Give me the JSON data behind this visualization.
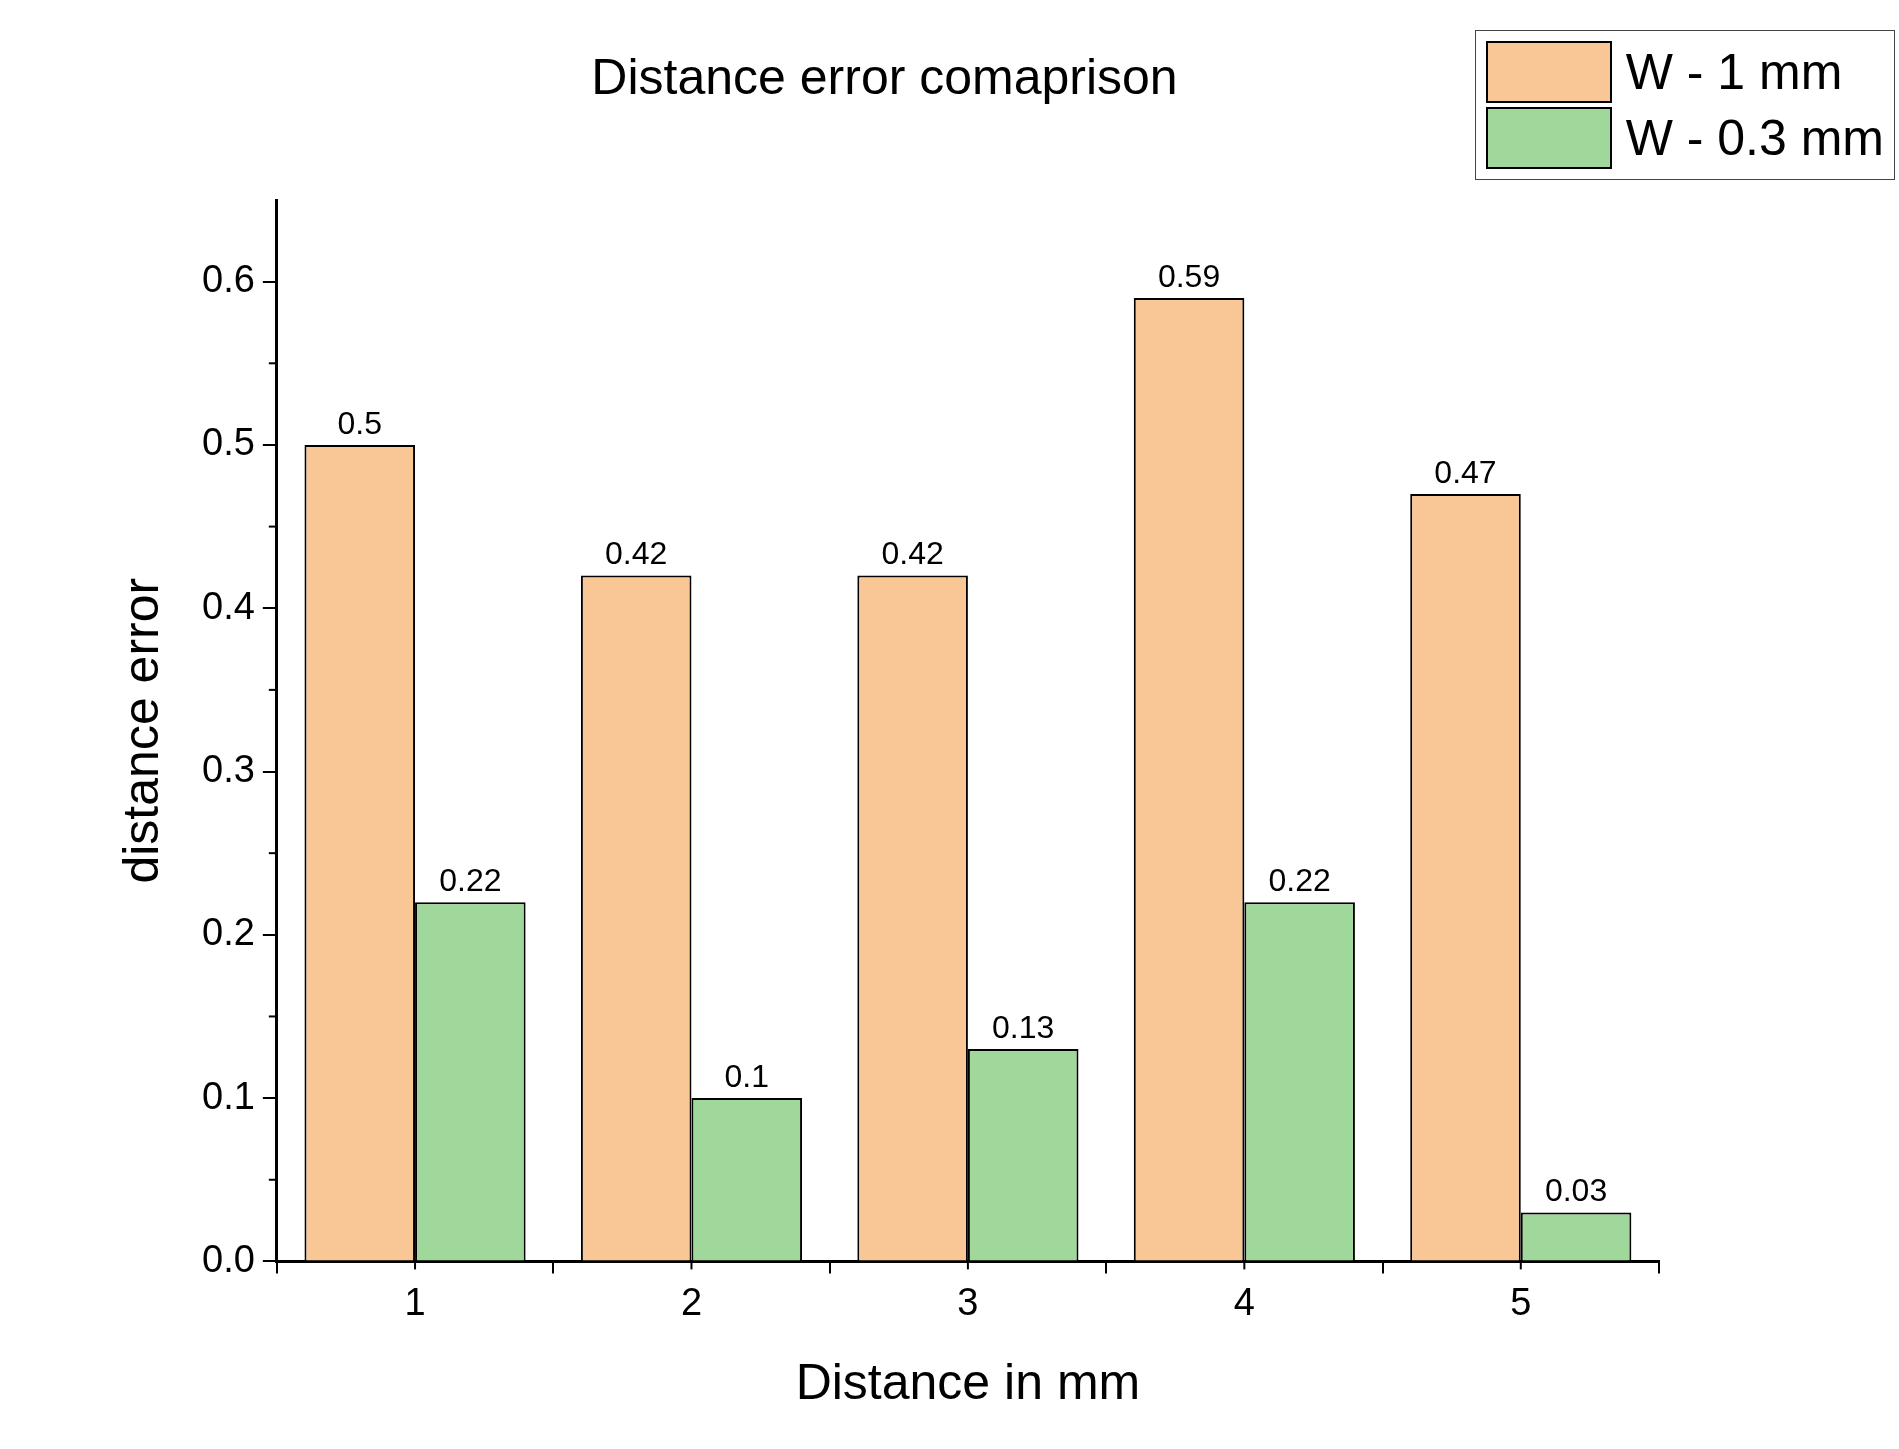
{
  "chart_data": {
    "type": "bar",
    "title": "Distance error comaprison",
    "xlabel": "Distance in mm",
    "ylabel": "distance error",
    "categories": [
      "1",
      "2",
      "3",
      "4",
      "5"
    ],
    "series": [
      {
        "name": "W - 1 mm",
        "color": "#f9c796",
        "values": [
          0.5,
          0.42,
          0.42,
          0.59,
          0.47
        ]
      },
      {
        "name": "W - 0.3 mm",
        "color": "#9fd89a",
        "values": [
          0.22,
          0.1,
          0.13,
          0.22,
          0.03
        ]
      }
    ],
    "ylim": [
      0,
      0.65
    ],
    "yticks": [
      {
        "value": 0,
        "label": "0.0"
      },
      0.1,
      0.2,
      0.3,
      0.4,
      0.5,
      0.6
    ],
    "data_labels": true,
    "grid": false,
    "legend": "top right"
  }
}
